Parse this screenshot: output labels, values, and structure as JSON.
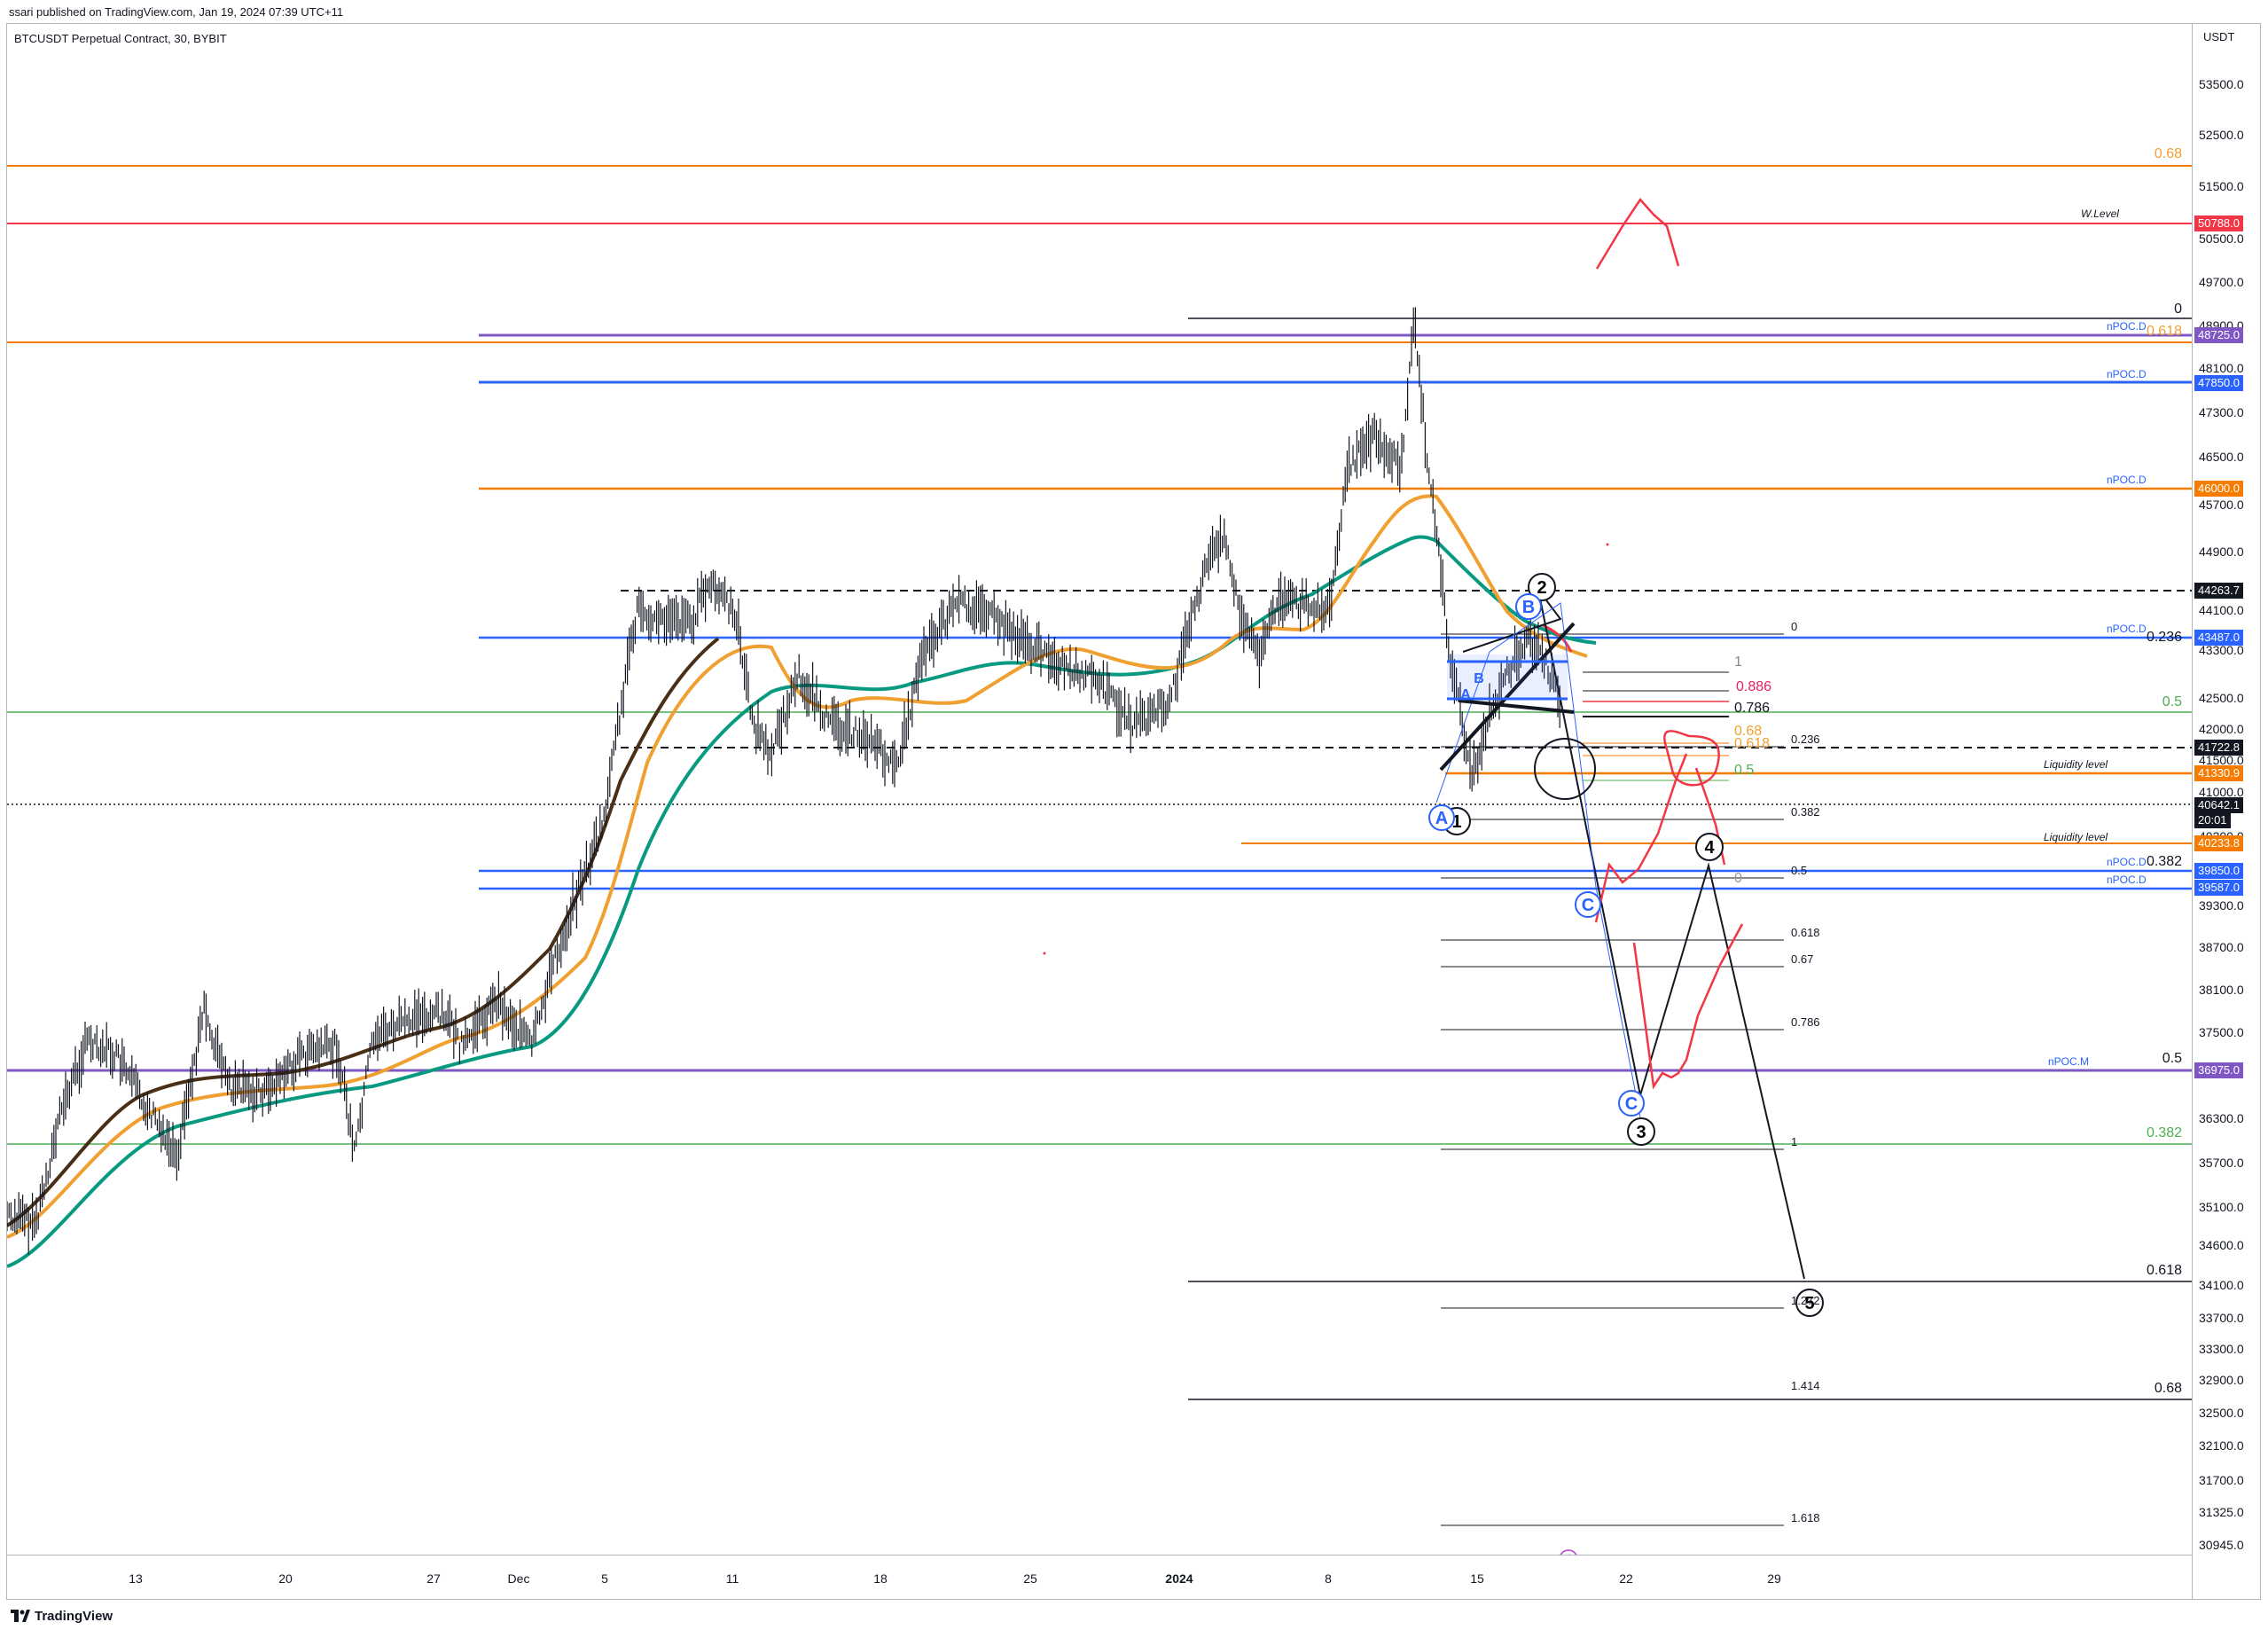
{
  "header": {
    "published_by": "ssari published on TradingView.com, Jan 19, 2024 07:39 UTC+11",
    "symbol_title": "BTCUSDT Perpetual Contract, 30, BYBIT"
  },
  "price_axis": {
    "currency": "USDT",
    "ticks": [
      "53500.0",
      "52500.0",
      "51500.0",
      "50500.0",
      "49700.0",
      "48900.0",
      "48100.0",
      "47300.0",
      "46500.0",
      "45700.0",
      "44900.0",
      "44100.0",
      "43300.0",
      "42500.0",
      "42000.0",
      "41500.0",
      "41000.0",
      "40300.0",
      "39300.0",
      "38700.0",
      "38100.0",
      "37500.0",
      "36300.0",
      "35700.0",
      "35100.0",
      "34600.0",
      "34100.0",
      "33700.0",
      "33300.0",
      "32900.0",
      "32500.0",
      "32100.0",
      "31700.0",
      "31325.0",
      "30945.0"
    ],
    "labels": [
      {
        "text": "50788.0",
        "color": "#f23645"
      },
      {
        "text": "48725.0",
        "color": "#7e57c2"
      },
      {
        "text": "47850.0",
        "color": "#2962ff"
      },
      {
        "text": "46000.0",
        "color": "#f57c00"
      },
      {
        "text": "44263.7",
        "color": "#131722"
      },
      {
        "text": "43487.0",
        "color": "#2962ff"
      },
      {
        "text": "41722.8",
        "color": "#131722"
      },
      {
        "text": "41330.9",
        "color": "#f57c00"
      },
      {
        "text": "40642.1",
        "color": "#131722"
      },
      {
        "text": "20:01",
        "color": "#131722"
      },
      {
        "text": "40233.8",
        "color": "#f57c00"
      },
      {
        "text": "39850.0",
        "color": "#2962ff"
      },
      {
        "text": "39587.0",
        "color": "#2962ff"
      },
      {
        "text": "36975.0",
        "color": "#7e57c2"
      }
    ]
  },
  "time_axis": {
    "ticks": [
      {
        "text": "13",
        "bold": false
      },
      {
        "text": "20",
        "bold": false
      },
      {
        "text": "27",
        "bold": false
      },
      {
        "text": "Dec",
        "bold": false
      },
      {
        "text": "5",
        "bold": false
      },
      {
        "text": "11",
        "bold": false
      },
      {
        "text": "18",
        "bold": false
      },
      {
        "text": "25",
        "bold": false
      },
      {
        "text": "2024",
        "bold": true
      },
      {
        "text": "8",
        "bold": false
      },
      {
        "text": "15",
        "bold": false
      },
      {
        "text": "22",
        "bold": false
      },
      {
        "text": "29",
        "bold": false
      }
    ]
  },
  "annotations": {
    "right_fib_labels": [
      "0.68",
      "0",
      "0.618",
      "0.236",
      "0.5",
      "0.382",
      "0.5",
      "0.382",
      "0.618",
      "0.68"
    ],
    "level_tags": [
      "W.Level",
      "nPOC.D",
      "nPOC.D",
      "nPOC.D",
      "nPOC.D",
      "nPOC.D",
      "nPOC.D",
      "nPOC.M",
      "Liquidity level",
      "Liquidity level"
    ],
    "mid_fib_labels": [
      "0",
      "1",
      "0.886",
      "0.786",
      "0.68",
      "0.618",
      "0.5",
      "0.236",
      "0.382",
      "0.5",
      "0",
      "0.618",
      "0.67",
      "0.786",
      "1",
      "1.272",
      "1.414",
      "1.618"
    ],
    "wave_labels": [
      "1",
      "2",
      "3",
      "4",
      "5",
      "A",
      "B",
      "C",
      "C",
      "A",
      "B"
    ]
  },
  "footer": {
    "brand": "TradingView"
  },
  "colors": {
    "red": "#f23645",
    "orange": "#f57c00",
    "blue": "#2962ff",
    "purple": "#7e57c2",
    "green": "#4caf50",
    "teal": "#089981",
    "ema_brown": "#4a2f17"
  }
}
